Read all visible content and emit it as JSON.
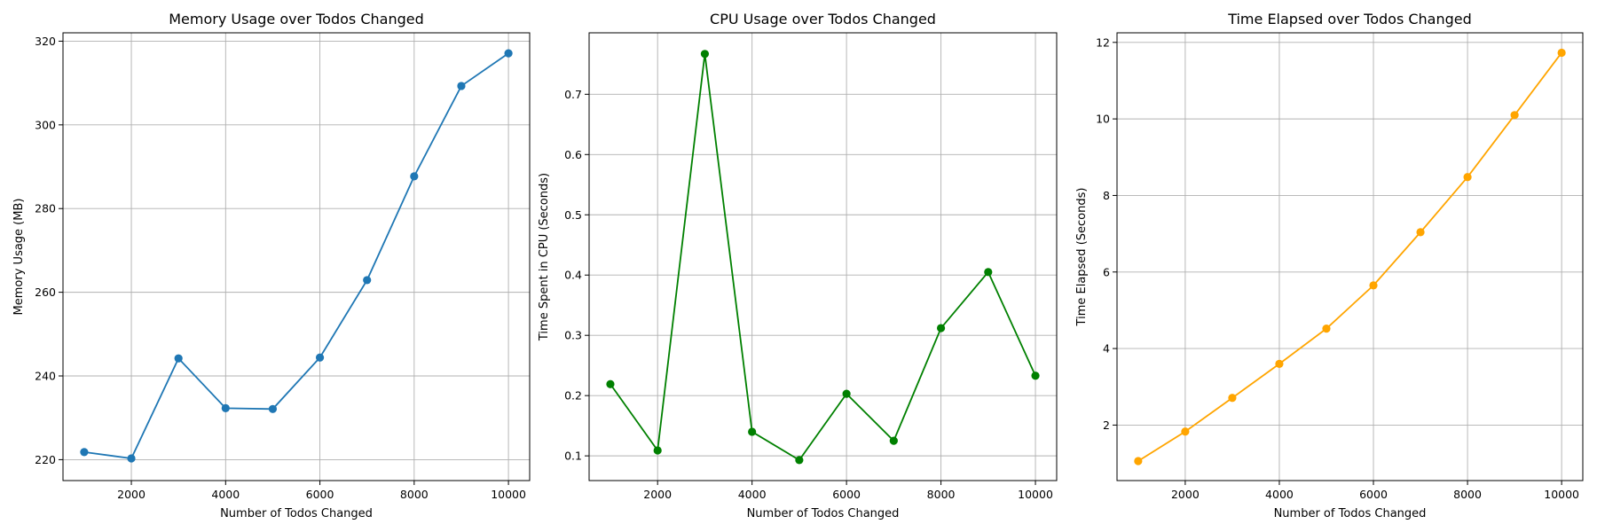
{
  "chart_data": [
    {
      "type": "line",
      "title": "Memory Usage over Todos Changed",
      "xlabel": "Number of Todos Changed",
      "ylabel": "Memory Usage (MB)",
      "xlim": [
        550,
        10450
      ],
      "ylim": [
        215,
        322
      ],
      "xticks": [
        2000,
        4000,
        6000,
        8000,
        10000
      ],
      "yticks": [
        220,
        240,
        260,
        280,
        300,
        320
      ],
      "grid": true,
      "color": "#1f77b4",
      "x": [
        1000,
        2000,
        3000,
        4000,
        5000,
        6000,
        7000,
        8000,
        9000,
        10000
      ],
      "y": [
        221.8,
        220.3,
        244.2,
        232.3,
        232.1,
        244.4,
        262.9,
        287.7,
        309.3,
        317.1
      ]
    },
    {
      "type": "line",
      "title": "CPU Usage over Todos Changed",
      "xlabel": "Number of Todos Changed",
      "ylabel": "Time Spent in CPU (Seconds)",
      "xlim": [
        550,
        10450
      ],
      "ylim": [
        0.059,
        0.802
      ],
      "xticks": [
        2000,
        4000,
        6000,
        8000,
        10000
      ],
      "yticks": [
        0.1,
        0.2,
        0.3,
        0.4,
        0.5,
        0.6,
        0.7
      ],
      "grid": true,
      "color": "#008000",
      "x": [
        1000,
        2000,
        3000,
        4000,
        5000,
        6000,
        7000,
        8000,
        9000,
        10000
      ],
      "y": [
        0.219,
        0.109,
        0.767,
        0.14,
        0.093,
        0.203,
        0.125,
        0.312,
        0.405,
        0.233
      ]
    },
    {
      "type": "line",
      "title": "Time Elapsed over Todos Changed",
      "xlabel": "Number of Todos Changed",
      "ylabel": "Time Elapsed (Seconds)",
      "xlim": [
        550,
        10450
      ],
      "ylim": [
        0.55,
        12.25
      ],
      "xticks": [
        2000,
        4000,
        6000,
        8000,
        10000
      ],
      "yticks": [
        2,
        4,
        6,
        8,
        10,
        12
      ],
      "grid": true,
      "color": "#ffa500",
      "x": [
        1000,
        2000,
        3000,
        4000,
        5000,
        6000,
        7000,
        8000,
        9000,
        10000
      ],
      "y": [
        1.06,
        1.83,
        2.71,
        3.6,
        4.52,
        5.65,
        7.04,
        8.48,
        10.1,
        11.73
      ]
    }
  ]
}
